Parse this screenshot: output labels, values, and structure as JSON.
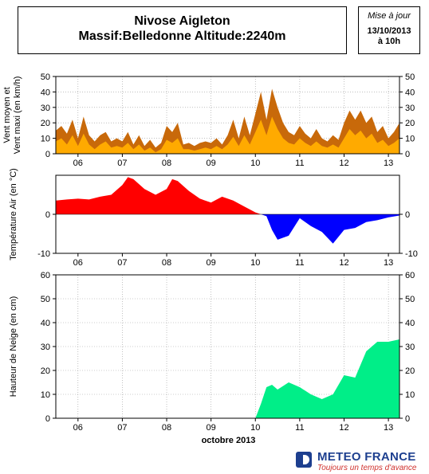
{
  "header": {
    "station": "Nivose Aigleton",
    "subtitle": "Massif:Belledonne Altitude:2240m",
    "update_label": "Mise à jour",
    "update_date": "13/10/2013",
    "update_time": "à 10h"
  },
  "footer": {
    "brand": "METEO FRANCE",
    "tagline": "Toujours un temps d'avance"
  },
  "colors": {
    "wind_max": "#c8690a",
    "wind_mean": "#ffaa00",
    "temp_pos": "#ff0000",
    "temp_neg": "#0000ff",
    "snow": "#00ee88",
    "grid": "#999999"
  },
  "chart_data": {
    "type": "area",
    "x_axis_label": "octobre 2013",
    "x_range": [
      "2013-10-05T12:00",
      "2013-10-13T06:00"
    ],
    "x_ticks": [
      {
        "label": "06",
        "time": "2013-10-06T00:00"
      },
      {
        "label": "07",
        "time": "2013-10-07T00:00"
      },
      {
        "label": "08",
        "time": "2013-10-08T00:00"
      },
      {
        "label": "09",
        "time": "2013-10-09T00:00"
      },
      {
        "label": "10",
        "time": "2013-10-10T00:00"
      },
      {
        "label": "11",
        "time": "2013-10-11T00:00"
      },
      {
        "label": "12",
        "time": "2013-10-12T00:00"
      },
      {
        "label": "13",
        "time": "2013-10-13T00:00"
      }
    ],
    "panels": [
      {
        "id": "wind",
        "ylabel_lines": [
          "Vent moyen et",
          "Vent maxi (en km/h)"
        ],
        "ylim": [
          0,
          50
        ],
        "yticks": [
          0,
          10,
          20,
          30,
          40,
          50
        ],
        "grid": true,
        "series": [
          {
            "key": "wind_max",
            "values": [
              [
                "2013-10-05T12:00",
                15
              ],
              [
                "2013-10-05T15:00",
                18
              ],
              [
                "2013-10-05T18:00",
                13
              ],
              [
                "2013-10-05T21:00",
                22
              ],
              [
                "2013-10-06T00:00",
                10
              ],
              [
                "2013-10-06T03:00",
                24
              ],
              [
                "2013-10-06T06:00",
                12
              ],
              [
                "2013-10-06T09:00",
                8
              ],
              [
                "2013-10-06T12:00",
                12
              ],
              [
                "2013-10-06T15:00",
                14
              ],
              [
                "2013-10-06T18:00",
                8
              ],
              [
                "2013-10-06T21:00",
                10
              ],
              [
                "2013-10-07T00:00",
                8
              ],
              [
                "2013-10-07T03:00",
                14
              ],
              [
                "2013-10-07T06:00",
                6
              ],
              [
                "2013-10-07T09:00",
                12
              ],
              [
                "2013-10-07T12:00",
                5
              ],
              [
                "2013-10-07T15:00",
                9
              ],
              [
                "2013-10-07T18:00",
                4
              ],
              [
                "2013-10-07T21:00",
                7
              ],
              [
                "2013-10-08T00:00",
                18
              ],
              [
                "2013-10-08T03:00",
                14
              ],
              [
                "2013-10-08T06:00",
                20
              ],
              [
                "2013-10-08T09:00",
                6
              ],
              [
                "2013-10-08T12:00",
                7
              ],
              [
                "2013-10-08T15:00",
                5
              ],
              [
                "2013-10-08T18:00",
                7
              ],
              [
                "2013-10-08T21:00",
                8
              ],
              [
                "2013-10-09T00:00",
                7
              ],
              [
                "2013-10-09T03:00",
                10
              ],
              [
                "2013-10-09T06:00",
                6
              ],
              [
                "2013-10-09T09:00",
                12
              ],
              [
                "2013-10-09T12:00",
                22
              ],
              [
                "2013-10-09T15:00",
                10
              ],
              [
                "2013-10-09T18:00",
                24
              ],
              [
                "2013-10-09T21:00",
                12
              ],
              [
                "2013-10-10T00:00",
                26
              ],
              [
                "2013-10-10T03:00",
                40
              ],
              [
                "2013-10-10T06:00",
                22
              ],
              [
                "2013-10-10T09:00",
                42
              ],
              [
                "2013-10-10T12:00",
                30
              ],
              [
                "2013-10-10T15:00",
                20
              ],
              [
                "2013-10-10T18:00",
                14
              ],
              [
                "2013-10-10T21:00",
                12
              ],
              [
                "2013-10-11T00:00",
                18
              ],
              [
                "2013-10-11T03:00",
                13
              ],
              [
                "2013-10-11T06:00",
                10
              ],
              [
                "2013-10-11T09:00",
                16
              ],
              [
                "2013-10-11T12:00",
                10
              ],
              [
                "2013-10-11T15:00",
                8
              ],
              [
                "2013-10-11T18:00",
                12
              ],
              [
                "2013-10-11T21:00",
                9
              ],
              [
                "2013-10-12T00:00",
                20
              ],
              [
                "2013-10-12T03:00",
                28
              ],
              [
                "2013-10-12T06:00",
                22
              ],
              [
                "2013-10-12T09:00",
                28
              ],
              [
                "2013-10-12T12:00",
                20
              ],
              [
                "2013-10-12T15:00",
                24
              ],
              [
                "2013-10-12T18:00",
                14
              ],
              [
                "2013-10-12T21:00",
                18
              ],
              [
                "2013-10-13T00:00",
                10
              ],
              [
                "2013-10-13T03:00",
                14
              ],
              [
                "2013-10-13T06:00",
                20
              ]
            ]
          },
          {
            "key": "wind_mean",
            "values": [
              [
                "2013-10-05T12:00",
                8
              ],
              [
                "2013-10-05T15:00",
                10
              ],
              [
                "2013-10-05T18:00",
                6
              ],
              [
                "2013-10-05T21:00",
                12
              ],
              [
                "2013-10-06T00:00",
                5
              ],
              [
                "2013-10-06T03:00",
                13
              ],
              [
                "2013-10-06T06:00",
                6
              ],
              [
                "2013-10-06T09:00",
                3
              ],
              [
                "2013-10-06T12:00",
                6
              ],
              [
                "2013-10-06T15:00",
                8
              ],
              [
                "2013-10-06T18:00",
                4
              ],
              [
                "2013-10-06T21:00",
                5
              ],
              [
                "2013-10-07T00:00",
                4
              ],
              [
                "2013-10-07T03:00",
                7
              ],
              [
                "2013-10-07T06:00",
                3
              ],
              [
                "2013-10-07T09:00",
                6
              ],
              [
                "2013-10-07T12:00",
                2
              ],
              [
                "2013-10-07T15:00",
                4
              ],
              [
                "2013-10-07T18:00",
                1
              ],
              [
                "2013-10-07T21:00",
                3
              ],
              [
                "2013-10-08T00:00",
                9
              ],
              [
                "2013-10-08T03:00",
                7
              ],
              [
                "2013-10-08T06:00",
                10
              ],
              [
                "2013-10-08T09:00",
                3
              ],
              [
                "2013-10-08T12:00",
                3
              ],
              [
                "2013-10-08T15:00",
                2
              ],
              [
                "2013-10-08T18:00",
                3
              ],
              [
                "2013-10-08T21:00",
                4
              ],
              [
                "2013-10-09T00:00",
                3
              ],
              [
                "2013-10-09T03:00",
                5
              ],
              [
                "2013-10-09T06:00",
                3
              ],
              [
                "2013-10-09T09:00",
                6
              ],
              [
                "2013-10-09T12:00",
                11
              ],
              [
                "2013-10-09T15:00",
                5
              ],
              [
                "2013-10-09T18:00",
                12
              ],
              [
                "2013-10-09T21:00",
                6
              ],
              [
                "2013-10-10T00:00",
                14
              ],
              [
                "2013-10-10T03:00",
                22
              ],
              [
                "2013-10-10T06:00",
                12
              ],
              [
                "2013-10-10T09:00",
                24
              ],
              [
                "2013-10-10T12:00",
                16
              ],
              [
                "2013-10-10T15:00",
                10
              ],
              [
                "2013-10-10T18:00",
                7
              ],
              [
                "2013-10-10T21:00",
                6
              ],
              [
                "2013-10-11T00:00",
                10
              ],
              [
                "2013-10-11T03:00",
                7
              ],
              [
                "2013-10-11T06:00",
                5
              ],
              [
                "2013-10-11T09:00",
                8
              ],
              [
                "2013-10-11T12:00",
                5
              ],
              [
                "2013-10-11T15:00",
                4
              ],
              [
                "2013-10-11T18:00",
                6
              ],
              [
                "2013-10-11T21:00",
                4
              ],
              [
                "2013-10-12T00:00",
                10
              ],
              [
                "2013-10-12T03:00",
                16
              ],
              [
                "2013-10-12T06:00",
                12
              ],
              [
                "2013-10-12T09:00",
                15
              ],
              [
                "2013-10-12T12:00",
                10
              ],
              [
                "2013-10-12T15:00",
                13
              ],
              [
                "2013-10-12T18:00",
                7
              ],
              [
                "2013-10-12T21:00",
                9
              ],
              [
                "2013-10-13T00:00",
                5
              ],
              [
                "2013-10-13T03:00",
                7
              ],
              [
                "2013-10-13T06:00",
                10
              ]
            ]
          }
        ]
      },
      {
        "id": "temp",
        "ylabel_lines": [
          "Température Air (en °C)"
        ],
        "ylim": [
          -10,
          10
        ],
        "yticks": [
          -10,
          0
        ],
        "grid": false,
        "series": [
          {
            "key": "temp",
            "values": [
              [
                "2013-10-05T12:00",
                3.5
              ],
              [
                "2013-10-05T18:00",
                3.8
              ],
              [
                "2013-10-06T00:00",
                4.0
              ],
              [
                "2013-10-06T06:00",
                3.8
              ],
              [
                "2013-10-06T12:00",
                4.5
              ],
              [
                "2013-10-06T18:00",
                5.0
              ],
              [
                "2013-10-07T00:00",
                7.5
              ],
              [
                "2013-10-07T03:00",
                9.5
              ],
              [
                "2013-10-07T06:00",
                9.0
              ],
              [
                "2013-10-07T12:00",
                6.5
              ],
              [
                "2013-10-07T18:00",
                5.0
              ],
              [
                "2013-10-08T00:00",
                6.5
              ],
              [
                "2013-10-08T03:00",
                9.0
              ],
              [
                "2013-10-08T06:00",
                8.5
              ],
              [
                "2013-10-08T12:00",
                6.0
              ],
              [
                "2013-10-08T18:00",
                4.0
              ],
              [
                "2013-10-09T00:00",
                3.0
              ],
              [
                "2013-10-09T06:00",
                4.5
              ],
              [
                "2013-10-09T12:00",
                3.5
              ],
              [
                "2013-10-09T18:00",
                2.0
              ],
              [
                "2013-10-10T00:00",
                0.5
              ],
              [
                "2013-10-10T06:00",
                -0.5
              ],
              [
                "2013-10-10T09:00",
                -4.0
              ],
              [
                "2013-10-10T12:00",
                -6.5
              ],
              [
                "2013-10-10T18:00",
                -5.5
              ],
              [
                "2013-10-11T00:00",
                -1.0
              ],
              [
                "2013-10-11T06:00",
                -3.0
              ],
              [
                "2013-10-11T12:00",
                -4.5
              ],
              [
                "2013-10-11T18:00",
                -7.5
              ],
              [
                "2013-10-12T00:00",
                -4.0
              ],
              [
                "2013-10-12T06:00",
                -3.5
              ],
              [
                "2013-10-12T12:00",
                -2.0
              ],
              [
                "2013-10-12T18:00",
                -1.5
              ],
              [
                "2013-10-13T00:00",
                -0.8
              ],
              [
                "2013-10-13T06:00",
                -0.3
              ]
            ]
          }
        ]
      },
      {
        "id": "snow",
        "ylabel_lines": [
          "Hauteur de Neige (en cm)"
        ],
        "ylim": [
          0,
          60
        ],
        "yticks": [
          0,
          10,
          20,
          30,
          40,
          50,
          60
        ],
        "grid": true,
        "series": [
          {
            "key": "snow",
            "values": [
              [
                "2013-10-05T12:00",
                0
              ],
              [
                "2013-10-10T00:00",
                0
              ],
              [
                "2013-10-10T03:00",
                6
              ],
              [
                "2013-10-10T06:00",
                13
              ],
              [
                "2013-10-10T09:00",
                14
              ],
              [
                "2013-10-10T12:00",
                12
              ],
              [
                "2013-10-10T18:00",
                15
              ],
              [
                "2013-10-11T00:00",
                13
              ],
              [
                "2013-10-11T06:00",
                10
              ],
              [
                "2013-10-11T12:00",
                8
              ],
              [
                "2013-10-11T18:00",
                10
              ],
              [
                "2013-10-12T00:00",
                18
              ],
              [
                "2013-10-12T06:00",
                17
              ],
              [
                "2013-10-12T12:00",
                28
              ],
              [
                "2013-10-12T18:00",
                32
              ],
              [
                "2013-10-13T00:00",
                32
              ],
              [
                "2013-10-13T06:00",
                33
              ]
            ]
          }
        ]
      }
    ]
  }
}
